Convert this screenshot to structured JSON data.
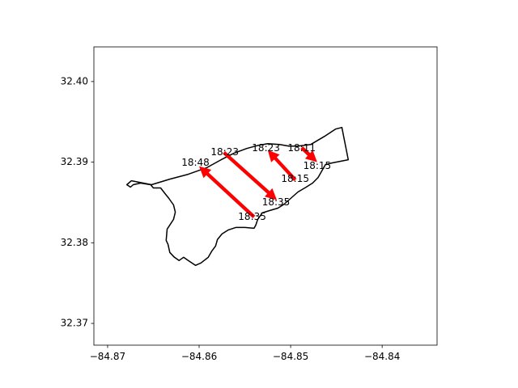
{
  "chart_data": {
    "type": "scatter",
    "title": "",
    "xlabel": "",
    "ylabel": "",
    "xlim": [
      -84.8715,
      -84.834
    ],
    "ylim": [
      32.3673,
      32.4043
    ],
    "xticks": [
      -84.87,
      -84.86,
      -84.85,
      -84.84
    ],
    "xtick_labels": [
      "−84.87",
      "−84.86",
      "−84.85",
      "−84.84"
    ],
    "yticks": [
      32.37,
      32.38,
      32.39,
      32.4
    ],
    "ytick_labels": [
      "32.37",
      "32.38",
      "32.39",
      "32.40"
    ],
    "grid": false,
    "colors": {
      "arrow": "#ff0000",
      "outline": "#000000",
      "axes": "#000000"
    },
    "boundary": [
      [
        -84.8652,
        32.3872
      ],
      [
        -84.8632,
        32.3879
      ],
      [
        -84.8612,
        32.3885
      ],
      [
        -84.8592,
        32.3893
      ],
      [
        -84.8576,
        32.3903
      ],
      [
        -84.8562,
        32.3911
      ],
      [
        -84.8548,
        32.3917
      ],
      [
        -84.8535,
        32.3921
      ],
      [
        -84.8525,
        32.3923
      ],
      [
        -84.8512,
        32.3922
      ],
      [
        -84.8502,
        32.392
      ],
      [
        -84.8492,
        32.392
      ],
      [
        -84.8478,
        32.3922
      ],
      [
        -84.8463,
        32.3932
      ],
      [
        -84.8451,
        32.3941
      ],
      [
        -84.8444,
        32.3943
      ],
      [
        -84.8437,
        32.3903
      ],
      [
        -84.8455,
        32.3899
      ],
      [
        -84.8462,
        32.3897
      ],
      [
        -84.8466,
        32.3889
      ],
      [
        -84.847,
        32.3881
      ],
      [
        -84.8476,
        32.3874
      ],
      [
        -84.8483,
        32.3869
      ],
      [
        -84.8492,
        32.3863
      ],
      [
        -84.85,
        32.3855
      ],
      [
        -84.8507,
        32.3848
      ],
      [
        -84.8514,
        32.3843
      ],
      [
        -84.8523,
        32.384
      ],
      [
        -84.8531,
        32.3837
      ],
      [
        -84.8536,
        32.3829
      ],
      [
        -84.8538,
        32.3822
      ],
      [
        -84.854,
        32.3818
      ],
      [
        -84.855,
        32.3819
      ],
      [
        -84.856,
        32.3819
      ],
      [
        -84.8568,
        32.3816
      ],
      [
        -84.8575,
        32.3811
      ],
      [
        -84.858,
        32.3804
      ],
      [
        -84.8582,
        32.3796
      ],
      [
        -84.8586,
        32.379
      ],
      [
        -84.859,
        32.3782
      ],
      [
        -84.8598,
        32.3775
      ],
      [
        -84.8604,
        32.3772
      ],
      [
        -84.8612,
        32.3778
      ],
      [
        -84.8617,
        32.3782
      ],
      [
        -84.8622,
        32.3778
      ],
      [
        -84.8627,
        32.3782
      ],
      [
        -84.8632,
        32.3788
      ],
      [
        -84.8634,
        32.3798
      ],
      [
        -84.8636,
        32.3803
      ],
      [
        -84.8635,
        32.3817
      ],
      [
        -84.8632,
        32.3822
      ],
      [
        -84.8628,
        32.3829
      ],
      [
        -84.8626,
        32.3838
      ],
      [
        -84.8628,
        32.3847
      ],
      [
        -84.8633,
        32.3855
      ],
      [
        -84.8638,
        32.3862
      ],
      [
        -84.8642,
        32.3868
      ],
      [
        -84.865,
        32.3868
      ],
      [
        -84.8653,
        32.3872
      ],
      [
        -84.8664,
        32.3874
      ],
      [
        -84.8672,
        32.3872
      ],
      [
        -84.8675,
        32.3869
      ],
      [
        -84.8679,
        32.3872
      ],
      [
        -84.8674,
        32.3877
      ],
      [
        -84.8652,
        32.3872
      ]
    ],
    "arrows": [
      {
        "from": [
          -84.854,
          32.3832
        ],
        "to": [
          -84.86,
          32.3895
        ]
      },
      {
        "from": [
          -84.8573,
          32.3912
        ],
        "to": [
          -84.8515,
          32.3853
        ]
      },
      {
        "from": [
          -84.8495,
          32.3878
        ],
        "to": [
          -84.8525,
          32.3915
        ]
      },
      {
        "from": [
          -84.8488,
          32.3918
        ],
        "to": [
          -84.8471,
          32.39
        ]
      }
    ],
    "annotations": [
      {
        "text": "18:35",
        "x": -84.8542,
        "y": 32.3832
      },
      {
        "text": "18:48",
        "x": -84.8604,
        "y": 32.3899
      },
      {
        "text": "18:23",
        "x": -84.8572,
        "y": 32.3912
      },
      {
        "text": "18:35",
        "x": -84.8516,
        "y": 32.385
      },
      {
        "text": "18:15",
        "x": -84.8495,
        "y": 32.3879
      },
      {
        "text": "18:23",
        "x": -84.8527,
        "y": 32.3917
      },
      {
        "text": "18:11",
        "x": -84.8488,
        "y": 32.3917
      },
      {
        "text": "18:15",
        "x": -84.8471,
        "y": 32.3895
      }
    ]
  }
}
